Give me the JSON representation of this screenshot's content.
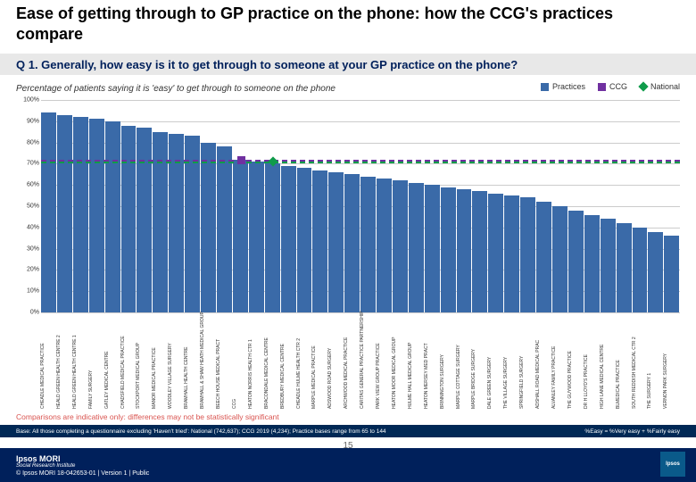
{
  "title": "Ease of getting through to GP practice on the phone: how the CCG's practices compare",
  "question": "Q 1. Generally, how easy is it to get through to someone at your GP practice on the phone?",
  "subheader": "Percentage of patients saying it is 'easy' to get through to someone on the phone",
  "legend": {
    "practices": "Practices",
    "ccg": "CCG",
    "national": "National"
  },
  "chart": {
    "type": "bar",
    "ylim": [
      0,
      100
    ],
    "ytick_step": 10,
    "bar_color": "#3a6aa8",
    "ccg_color": "#7030a0",
    "national_color": "#0f9b4a",
    "ccg_value": 72,
    "national_value": 71,
    "grid_color": "#cccccc",
    "yticks": [
      "0%",
      "10%",
      "20%",
      "30%",
      "40%",
      "50%",
      "60%",
      "70%",
      "80%",
      "90%",
      "100%"
    ],
    "categories": [
      "CHEADLE MEDICAL PRACTICE",
      "HEALD GREEN HEALTH CENTRE 2",
      "HEALD GREEN HEALTH CENTRE 1",
      "FAMILY SURGERY",
      "GATLEY MEDICAL CENTRE",
      "CHADSFIELD MEDICAL PRACTICE",
      "STOCKPORT MEDICAL GROUP",
      "MANOR MEDICAL PRACTICE",
      "WOODLEY VILLAGE SURGERY",
      "BRAMHALL HEALTH CENTRE",
      "BRAMHALL & SHAW HEATH MEDICAL GROUP",
      "BEECH HOUSE MEDICAL PRACT",
      "CCG",
      "HEATON NORRIS HEALTH CTR 1",
      "BRACONDALE MEDICAL CENTRE",
      "BREDBURY MEDICAL CENTRE",
      "CHEADLE HULME HEALTH CTR 2",
      "MARPLE MEDICAL PRACTICE",
      "ADSWOOD ROAD SURGERY",
      "ARCHWOOD MEDICAL PRACTICE",
      "CARITAS GENERAL PRACTICE PARTNERSHIP",
      "PARK VIEW GROUP PRACTICE",
      "HEATON MOOR MEDICAL GROUP",
      "HULME HALL MEDICAL GROUP",
      "HEATON MERSEY MED PRACT",
      "BRINNINGTON SURGERY",
      "MARPLE COTTAGE SURGERY",
      "MARPLE BRIDGE SURGERY",
      "DALE GREEN SURGERY",
      "THE VILLAGE SURGERY",
      "SPRINGFIELD SURGERY",
      "ADSHALL ROAD MEDICAL PRAC",
      "ALVANLEY FAMILY PRACTICE",
      "THE GUYWOOD PRACTICE",
      "DR H LLOYD'S PRACTICE",
      "HIGH LANE MEDICAL CENTRE",
      "BLMEDICAL PRACTICE",
      "SOUTH REDDISH MEDICAL CTR 2",
      "THE SURGERY 1",
      "VERNON PARK SURGERY"
    ],
    "values": [
      94,
      93,
      92,
      91,
      90,
      88,
      87,
      85,
      84,
      83,
      80,
      78,
      72,
      71,
      70,
      69,
      68,
      67,
      66,
      65,
      64,
      63,
      62,
      61,
      60,
      59,
      58,
      57,
      56,
      55,
      54,
      52,
      50,
      48,
      46,
      44,
      42,
      40,
      38,
      36
    ]
  },
  "comparison_note": "Comparisons are indicative only: differences may not be statistically significant",
  "base_text": "Base: All those completing a questionnaire excluding 'Haven't tried': National (742,637); CCG 2019 (4,234); Practice bases range from 65 to 144",
  "easy_def": "%Easy = %Very easy + %Fairly easy",
  "footer_left": "Ipsos MORI",
  "footer_sub": "Social Research Institute",
  "footer_copy": "© Ipsos MORI    18-042653-01 | Version 1 | Public",
  "page_num": "15",
  "ipsos_sq": "Ipsos"
}
